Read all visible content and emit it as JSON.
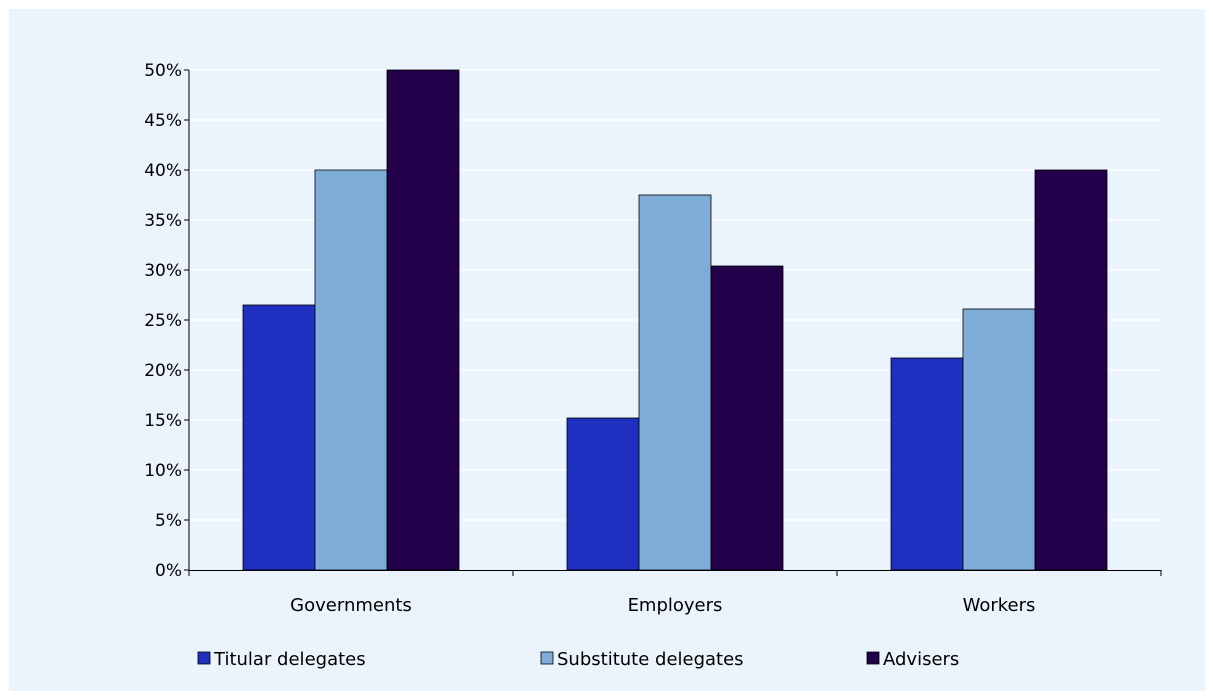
{
  "chart_data": {
    "type": "bar",
    "title": "",
    "xlabel": "",
    "ylabel": "",
    "categories": [
      "Governments",
      "Employers",
      "Workers"
    ],
    "series": [
      {
        "name": "Titular delegates",
        "color": "#1f2fbf",
        "values": [
          26.5,
          15.2,
          21.2
        ]
      },
      {
        "name": "Substitute delegates",
        "color": "#7fadd9",
        "values": [
          40.0,
          37.5,
          26.1
        ]
      },
      {
        "name": "Advisers",
        "color": "#22004a",
        "values": [
          50.0,
          30.4,
          40.0
        ]
      }
    ],
    "ylim": [
      0,
      50
    ],
    "yticks": [
      "0%",
      "5%",
      "10%",
      "15%",
      "20%",
      "25%",
      "30%",
      "35%",
      "40%",
      "45%",
      "50%"
    ],
    "grid": true,
    "legend_position": "bottom",
    "background_color": "#ebf4fc"
  }
}
